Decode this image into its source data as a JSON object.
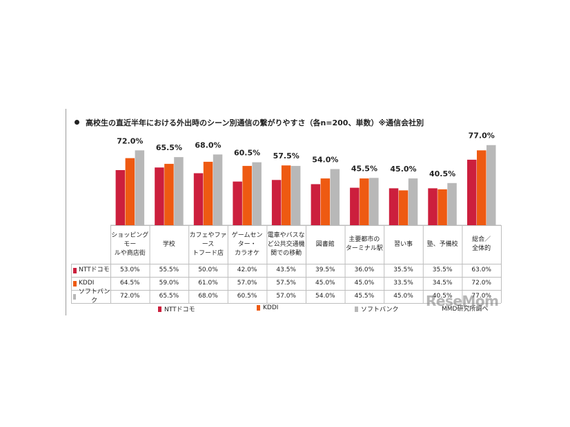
{
  "colors": {
    "docomo": "#cc1f3d",
    "kddi": "#ee5a12",
    "softbank": "#b8b8b8"
  },
  "title": "高校生の直近半年における外出時のシーン別通信の繋がりやすさ（各n=200、単数）※通信会社別",
  "chart_data": {
    "type": "bar",
    "title": "高校生の直近半年における外出時のシーン別通信の繋がりやすさ（各n=200、単数）※通信会社別",
    "categories": [
      [
        "ショッピングモー",
        "ルや商店街"
      ],
      [
        "学校"
      ],
      [
        "カフェやファース",
        "トフード店"
      ],
      [
        "ゲームセン",
        "ター・",
        "カラオケ"
      ],
      [
        "電車やバスな",
        "ど公共交通機",
        "関での移動"
      ],
      [
        "図書館"
      ],
      [
        "主要都市の",
        "ターミナル駅"
      ],
      [
        "習い事"
      ],
      [
        "塾、予備校"
      ],
      [
        "総合／",
        "全体的"
      ]
    ],
    "series": [
      {
        "name": "NTTドコモ",
        "key": "docomo",
        "values": [
          53.0,
          55.5,
          50.0,
          42.0,
          43.5,
          39.5,
          36.0,
          35.5,
          35.5,
          63.0
        ],
        "labels": [
          "53.0%",
          "55.5%",
          "50.0%",
          "42.0%",
          "43.5%",
          "39.5%",
          "36.0%",
          "35.5%",
          "35.5%",
          "63.0%"
        ]
      },
      {
        "name": "KDDI",
        "key": "kddi",
        "values": [
          64.5,
          59.0,
          61.0,
          57.0,
          57.5,
          45.0,
          45.0,
          33.5,
          34.5,
          72.0
        ],
        "labels": [
          "64.5%",
          "59.0%",
          "61.0%",
          "57.0%",
          "57.5%",
          "45.0%",
          "45.0%",
          "33.5%",
          "34.5%",
          "72.0%"
        ]
      },
      {
        "name": "ソフトバンク",
        "key": "softbank",
        "values": [
          72.0,
          65.5,
          68.0,
          60.5,
          57.0,
          54.0,
          45.5,
          45.0,
          40.5,
          77.0
        ],
        "labels": [
          "72.0%",
          "65.5%",
          "68.0%",
          "60.5%",
          "57.0%",
          "54.0%",
          "45.5%",
          "45.0%",
          "40.5%",
          "77.0%"
        ]
      }
    ],
    "top_labels": [
      "72.0%",
      "65.5%",
      "68.0%",
      "60.5%",
      "57.5%",
      "54.0%",
      "45.5%",
      "45.0%",
      "40.5%",
      "77.0%"
    ],
    "ylim": [
      0,
      100
    ],
    "legend_position": "bottom"
  },
  "legend": [
    "NTTドコモ",
    "KDDI",
    "ソフトバンク"
  ],
  "source": "MMD研究所調べ",
  "watermark": "ReseMom"
}
